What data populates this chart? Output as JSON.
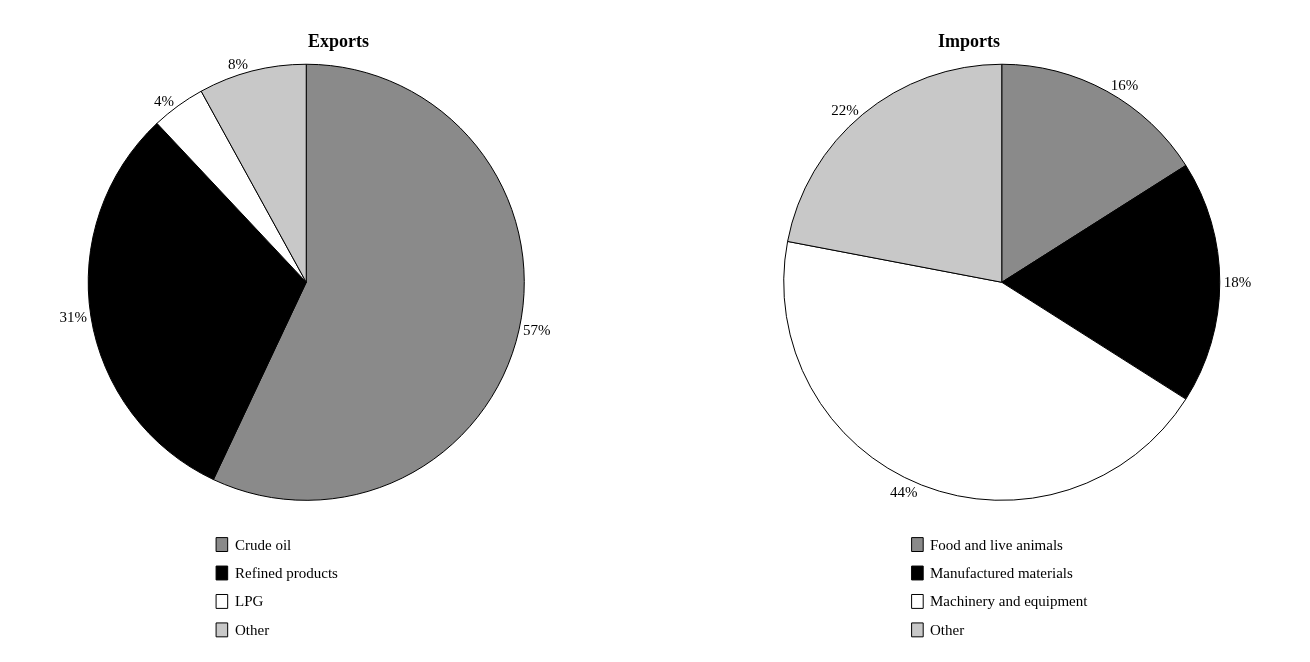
{
  "chart_data": [
    {
      "type": "pie",
      "title": "Exports",
      "categories": [
        "Crude oil",
        "Refined products",
        "LPG",
        "Other"
      ],
      "values": [
        57,
        31,
        4,
        8
      ],
      "value_labels": [
        "57%",
        "31%",
        "4%",
        "8%"
      ],
      "colors": [
        "#8a8a8a",
        "#000000",
        "#ffffff",
        "#c8c8c8"
      ],
      "legend": "bottom left"
    },
    {
      "type": "pie",
      "title": "Imports",
      "categories": [
        "Food and live animals",
        "Manufactured materials",
        "Machinery and equipment",
        "Other"
      ],
      "values": [
        16,
        18,
        44,
        22
      ],
      "value_labels": [
        "16%",
        "18%",
        "44%",
        "22%"
      ],
      "colors": [
        "#8a8a8a",
        "#000000",
        "#ffffff",
        "#c8c8c8"
      ],
      "legend": "bottom left"
    }
  ]
}
